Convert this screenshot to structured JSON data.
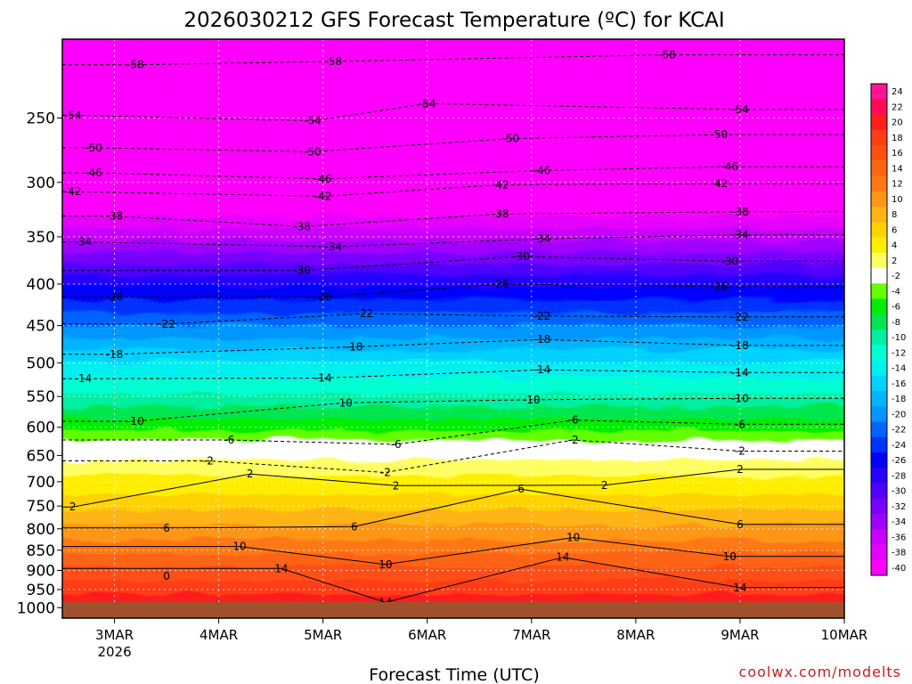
{
  "chart_data": {
    "type": "heatmap",
    "title": "2026030212 GFS Forecast Temperature (ºC) for KCAI",
    "xlabel": "Forecast Time (UTC)",
    "credit": "coolwx.com/modelts",
    "x_ticks": [
      {
        "label": "3MAR",
        "sub": "2026",
        "day": 3
      },
      {
        "label": "4MAR",
        "sub": "",
        "day": 4
      },
      {
        "label": "5MAR",
        "sub": "",
        "day": 5
      },
      {
        "label": "6MAR",
        "sub": "",
        "day": 6
      },
      {
        "label": "7MAR",
        "sub": "",
        "day": 7
      },
      {
        "label": "8MAR",
        "sub": "",
        "day": 8
      },
      {
        "label": "9MAR",
        "sub": "",
        "day": 9
      },
      {
        "label": "10MAR",
        "sub": "",
        "day": 10
      }
    ],
    "xlim_days": [
      2.5,
      10.0
    ],
    "y_ticks": [
      "250",
      "300",
      "350",
      "400",
      "450",
      "500",
      "550",
      "600",
      "650",
      "700",
      "750",
      "800",
      "850",
      "900",
      "950",
      "1000"
    ],
    "ylim_hpa": [
      1030,
      200
    ],
    "y_scale": "log-pressure",
    "ground_color": "#a0522d",
    "colorbar": {
      "labels": [
        "24",
        "22",
        "20",
        "18",
        "16",
        "14",
        "12",
        "10",
        "8",
        "6",
        "4",
        "2",
        "-2",
        "-4",
        "-6",
        "-8",
        "-10",
        "-12",
        "-14",
        "-16",
        "-18",
        "-20",
        "-22",
        "-24",
        "-26",
        "-28",
        "-30",
        "-32",
        "-34",
        "-36",
        "-38",
        "-40"
      ],
      "colors": [
        "#ff1493",
        "#ff0a5a",
        "#ff1e1e",
        "#ff3c14",
        "#ff5014",
        "#ff6414",
        "#ff7814",
        "#ff9614",
        "#ffb414",
        "#ffd200",
        "#ffee00",
        "#ffff64",
        "#ffffff",
        "#64ff00",
        "#00ee00",
        "#00e650",
        "#00f0a0",
        "#00ffd2",
        "#00f0f0",
        "#00d2ff",
        "#00b4ff",
        "#0096ff",
        "#0064ff",
        "#0032ff",
        "#0000ff",
        "#2800ff",
        "#5000ff",
        "#7800ff",
        "#a000ff",
        "#c800ff",
        "#e600ff",
        "#ff00ff"
      ]
    },
    "profile": {
      "pressure_hpa": [
        200,
        250,
        300,
        350,
        400,
        450,
        500,
        550,
        600,
        650,
        700,
        750,
        800,
        850,
        900,
        950,
        1000
      ],
      "temperature_c_day3": [
        -60,
        -55,
        -45,
        -36,
        -28,
        -21,
        -15,
        -10,
        -5,
        1,
        3,
        6,
        9,
        12,
        15,
        18,
        20
      ],
      "temperature_c_day7": [
        -61,
        -52,
        -42,
        -33,
        -25,
        -19,
        -13,
        -9,
        -4,
        2,
        6,
        9,
        12,
        15,
        18,
        21,
        23
      ]
    },
    "contours": [
      {
        "value": "-58",
        "labels": [
          [
            3.2,
            215
          ],
          [
            5.1,
            213
          ],
          [
            8.3,
            209
          ]
        ]
      },
      {
        "value": "-54",
        "labels": [
          [
            2.6,
            248
          ],
          [
            4.9,
            252
          ],
          [
            6.0,
            240
          ],
          [
            9.0,
            244
          ]
        ]
      },
      {
        "value": "-50",
        "labels": [
          [
            2.8,
            272
          ],
          [
            4.9,
            275
          ],
          [
            6.8,
            265
          ],
          [
            8.8,
            262
          ]
        ]
      },
      {
        "value": "-46",
        "labels": [
          [
            2.8,
            292
          ],
          [
            5.0,
            297
          ],
          [
            7.1,
            290
          ],
          [
            8.9,
            287
          ]
        ]
      },
      {
        "value": "-42",
        "labels": [
          [
            2.6,
            308
          ],
          [
            5.0,
            312
          ],
          [
            6.7,
            302
          ],
          [
            8.8,
            301
          ]
        ]
      },
      {
        "value": "-38",
        "labels": [
          [
            3.0,
            330
          ],
          [
            4.8,
            340
          ],
          [
            6.7,
            328
          ],
          [
            9.0,
            326
          ]
        ]
      },
      {
        "value": "-34",
        "labels": [
          [
            2.7,
            355
          ],
          [
            5.1,
            360
          ],
          [
            7.1,
            352
          ],
          [
            9.0,
            348
          ]
        ]
      },
      {
        "value": "-30",
        "labels": [
          [
            4.8,
            385
          ],
          [
            6.9,
            370
          ],
          [
            8.9,
            375
          ]
        ]
      },
      {
        "value": "-26",
        "labels": [
          [
            3.0,
            415
          ],
          [
            5.0,
            415
          ],
          [
            6.7,
            400
          ],
          [
            8.8,
            403
          ]
        ]
      },
      {
        "value": "-22",
        "labels": [
          [
            3.5,
            448
          ],
          [
            5.4,
            435
          ],
          [
            7.1,
            438
          ],
          [
            9.0,
            439
          ]
        ]
      },
      {
        "value": "-18",
        "labels": [
          [
            3.0,
            488
          ],
          [
            5.3,
            478
          ],
          [
            7.1,
            468
          ],
          [
            9.0,
            476
          ]
        ]
      },
      {
        "value": "-14",
        "labels": [
          [
            2.7,
            523
          ],
          [
            5.0,
            522
          ],
          [
            7.1,
            510
          ],
          [
            9.0,
            514
          ]
        ]
      },
      {
        "value": "-10",
        "labels": [
          [
            3.2,
            590
          ],
          [
            5.2,
            560
          ],
          [
            7.0,
            555
          ],
          [
            9.0,
            553
          ]
        ]
      },
      {
        "value": "-6",
        "labels": [
          [
            4.1,
            622
          ],
          [
            5.7,
            630
          ],
          [
            7.4,
            588
          ],
          [
            9.0,
            595
          ]
        ]
      },
      {
        "value": "-2",
        "labels": [
          [
            3.9,
            660
          ],
          [
            5.6,
            682
          ],
          [
            7.4,
            622
          ],
          [
            9.0,
            642
          ]
        ]
      },
      {
        "value": "2",
        "labels": [
          [
            2.6,
            752
          ],
          [
            4.3,
            685
          ],
          [
            5.7,
            708
          ],
          [
            7.7,
            707
          ],
          [
            9.0,
            676
          ]
        ]
      },
      {
        "value": "6",
        "labels": [
          [
            3.5,
            798
          ],
          [
            5.3,
            795
          ],
          [
            6.9,
            715
          ],
          [
            9.0,
            790
          ]
        ]
      },
      {
        "value": "10",
        "labels": [
          [
            4.2,
            841
          ],
          [
            5.6,
            885
          ],
          [
            7.4,
            820
          ],
          [
            8.9,
            865
          ]
        ]
      },
      {
        "value": "14",
        "labels": [
          [
            4.6,
            895
          ],
          [
            5.6,
            985
          ],
          [
            7.3,
            867
          ],
          [
            9.0,
            945
          ]
        ]
      },
      {
        "value": "0",
        "labels": [
          [
            3.5,
            915
          ]
        ]
      }
    ]
  }
}
